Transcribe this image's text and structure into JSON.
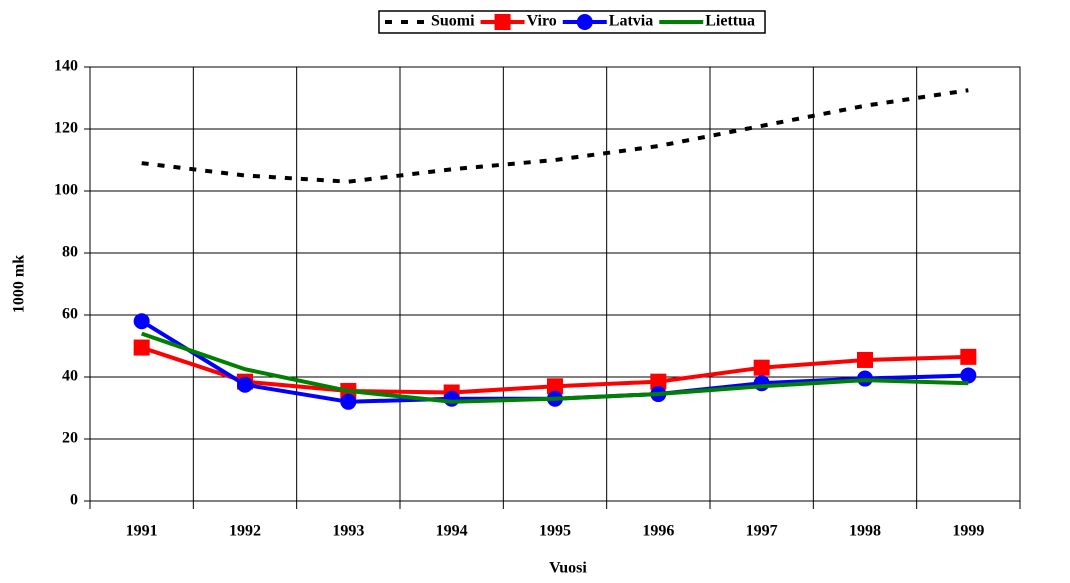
{
  "chart_data": {
    "type": "line",
    "x_label": "Vuosi",
    "y_label": "1000 mk",
    "categories": [
      "1991",
      "1992",
      "1993",
      "1994",
      "1995",
      "1996",
      "1997",
      "1998",
      "1999"
    ],
    "series": [
      {
        "name": "Suomi",
        "color": "#000000",
        "style": "dashed",
        "marker": "none",
        "values": [
          109,
          105,
          103,
          107,
          110,
          114.5,
          121,
          127.5,
          132.5
        ]
      },
      {
        "name": "Viro",
        "color": "#ff0000",
        "style": "solid",
        "marker": "square",
        "values": [
          49.5,
          38.5,
          35.5,
          35,
          37,
          38.5,
          43,
          45.5,
          46.5
        ]
      },
      {
        "name": "Latvia",
        "color": "#0000ff",
        "style": "solid",
        "marker": "circle",
        "values": [
          58,
          37.5,
          32,
          33,
          33,
          34.5,
          38,
          39.5,
          40.5
        ]
      },
      {
        "name": "Liettua",
        "color": "#008000",
        "style": "solid",
        "marker": "none",
        "values": [
          54,
          42.5,
          35.5,
          32,
          33,
          34.5,
          37,
          39,
          38
        ]
      }
    ],
    "ylim": [
      0,
      140
    ],
    "yticks": [
      0,
      20,
      40,
      60,
      80,
      100,
      120,
      140
    ],
    "grid": true,
    "legend": "top"
  }
}
